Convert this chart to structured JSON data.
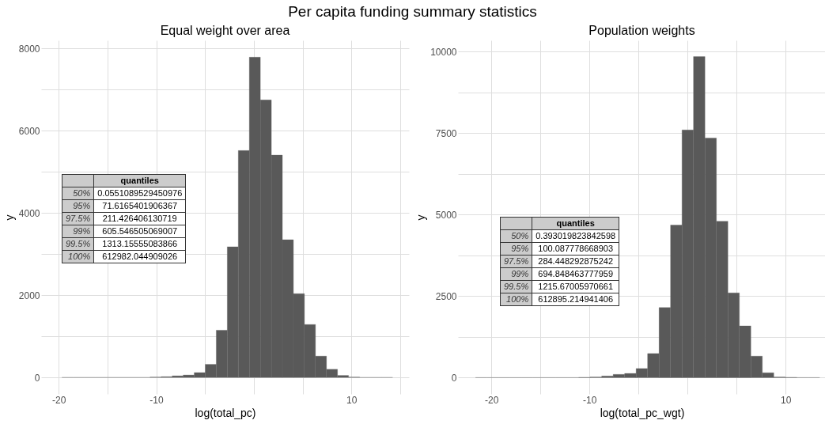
{
  "chart_data": [
    {
      "type": "other",
      "title": "Per capita funding summary statistics"
    },
    {
      "type": "histogram",
      "title": "Equal weight over area",
      "xlabel": "log(total_pc)",
      "ylabel": "y",
      "color": "#595959",
      "bins": [
        -19.67,
        -18.54,
        -17.41,
        -16.28,
        -15.15,
        -14.02,
        -12.89,
        -11.76,
        -10.63,
        -9.5,
        -8.37,
        -7.24,
        -6.11,
        -4.98,
        -3.85,
        -2.72,
        -1.59,
        -0.46,
        0.67,
        1.8,
        2.93,
        4.06,
        5.19,
        6.32,
        7.45,
        8.58,
        9.71,
        10.84,
        11.97,
        13.1,
        14.23
      ],
      "values": [
        0,
        0,
        0,
        0,
        0,
        0,
        0,
        0,
        10,
        20,
        40,
        60,
        120,
        320,
        1150,
        3180,
        5520,
        7790,
        6750,
        5410,
        3350,
        2040,
        1290,
        520,
        200,
        50,
        10,
        0,
        0,
        0
      ],
      "xlim": [
        -21.8,
        15.9
      ],
      "xticks": [
        -20,
        {
          "value": -15,
          "label": null
        },
        -10,
        {
          "value": -5,
          "label": null
        },
        {
          "value": 0,
          "label": null
        },
        {
          "value": 5,
          "label": null
        },
        10,
        {
          "value": 15,
          "label": null
        }
      ],
      "ylim": [
        -400,
        8200
      ],
      "yticks": [
        0,
        {
          "value": 1000,
          "label": null
        },
        2000,
        {
          "value": 3000,
          "label": null
        },
        4000,
        {
          "value": 5000,
          "label": null
        },
        6000,
        {
          "value": 7000,
          "label": null
        },
        8000
      ],
      "grid": true,
      "annotations": [
        "quantiles",
        "50%",
        "0.0551089529450976",
        "95%",
        "71.6165401906367",
        "97.5%",
        "211.426406130719",
        "99%",
        "605.546505069007",
        "99.5%",
        "1313.15555083866",
        "100%",
        "612982.044909026"
      ]
    },
    {
      "type": "histogram",
      "title": "Population weights",
      "xlabel": "log(total_pc_wgt)",
      "ylabel": "y",
      "color": "#595959",
      "bins": [
        -21.62,
        -20.45,
        -19.28,
        -18.11,
        -16.94,
        -15.77,
        -14.6,
        -13.43,
        -12.26,
        -11.09,
        -9.92,
        -8.75,
        -7.58,
        -6.41,
        -5.24,
        -4.07,
        -2.9,
        -1.73,
        -0.56,
        0.61,
        1.78,
        2.95,
        4.12,
        5.29,
        6.46,
        7.63,
        8.8,
        9.97,
        11.14,
        12.31,
        13.48
      ],
      "values": [
        0,
        0,
        0,
        0,
        0,
        0,
        0,
        0,
        0,
        10,
        20,
        50,
        100,
        130,
        280,
        740,
        2150,
        4680,
        7600,
        9850,
        7350,
        4800,
        2600,
        1590,
        660,
        150,
        20,
        10,
        0,
        0
      ],
      "xlim": [
        -23.4,
        14.1
      ],
      "xticks": [
        -20,
        {
          "value": -15,
          "label": null
        },
        -10,
        {
          "value": -5,
          "label": null
        },
        {
          "value": 0,
          "label": null
        },
        {
          "value": 5,
          "label": null
        },
        10
      ],
      "ylim": [
        -500,
        10350
      ],
      "yticks": [
        0,
        {
          "value": 1250,
          "label": null
        },
        2500,
        {
          "value": 3750,
          "label": null
        },
        5000,
        {
          "value": 6250,
          "label": null
        },
        7500,
        {
          "value": 8750,
          "label": null
        },
        10000
      ],
      "grid": true,
      "annotations": [
        "quantiles",
        "50%",
        "0.393019823842598",
        "95%",
        "100.087778668903",
        "97.5%",
        "284.448292875242",
        "99%",
        "694.848463777959",
        "99.5%",
        "1215.67005970661",
        "100%",
        "612895.214941406"
      ]
    }
  ]
}
